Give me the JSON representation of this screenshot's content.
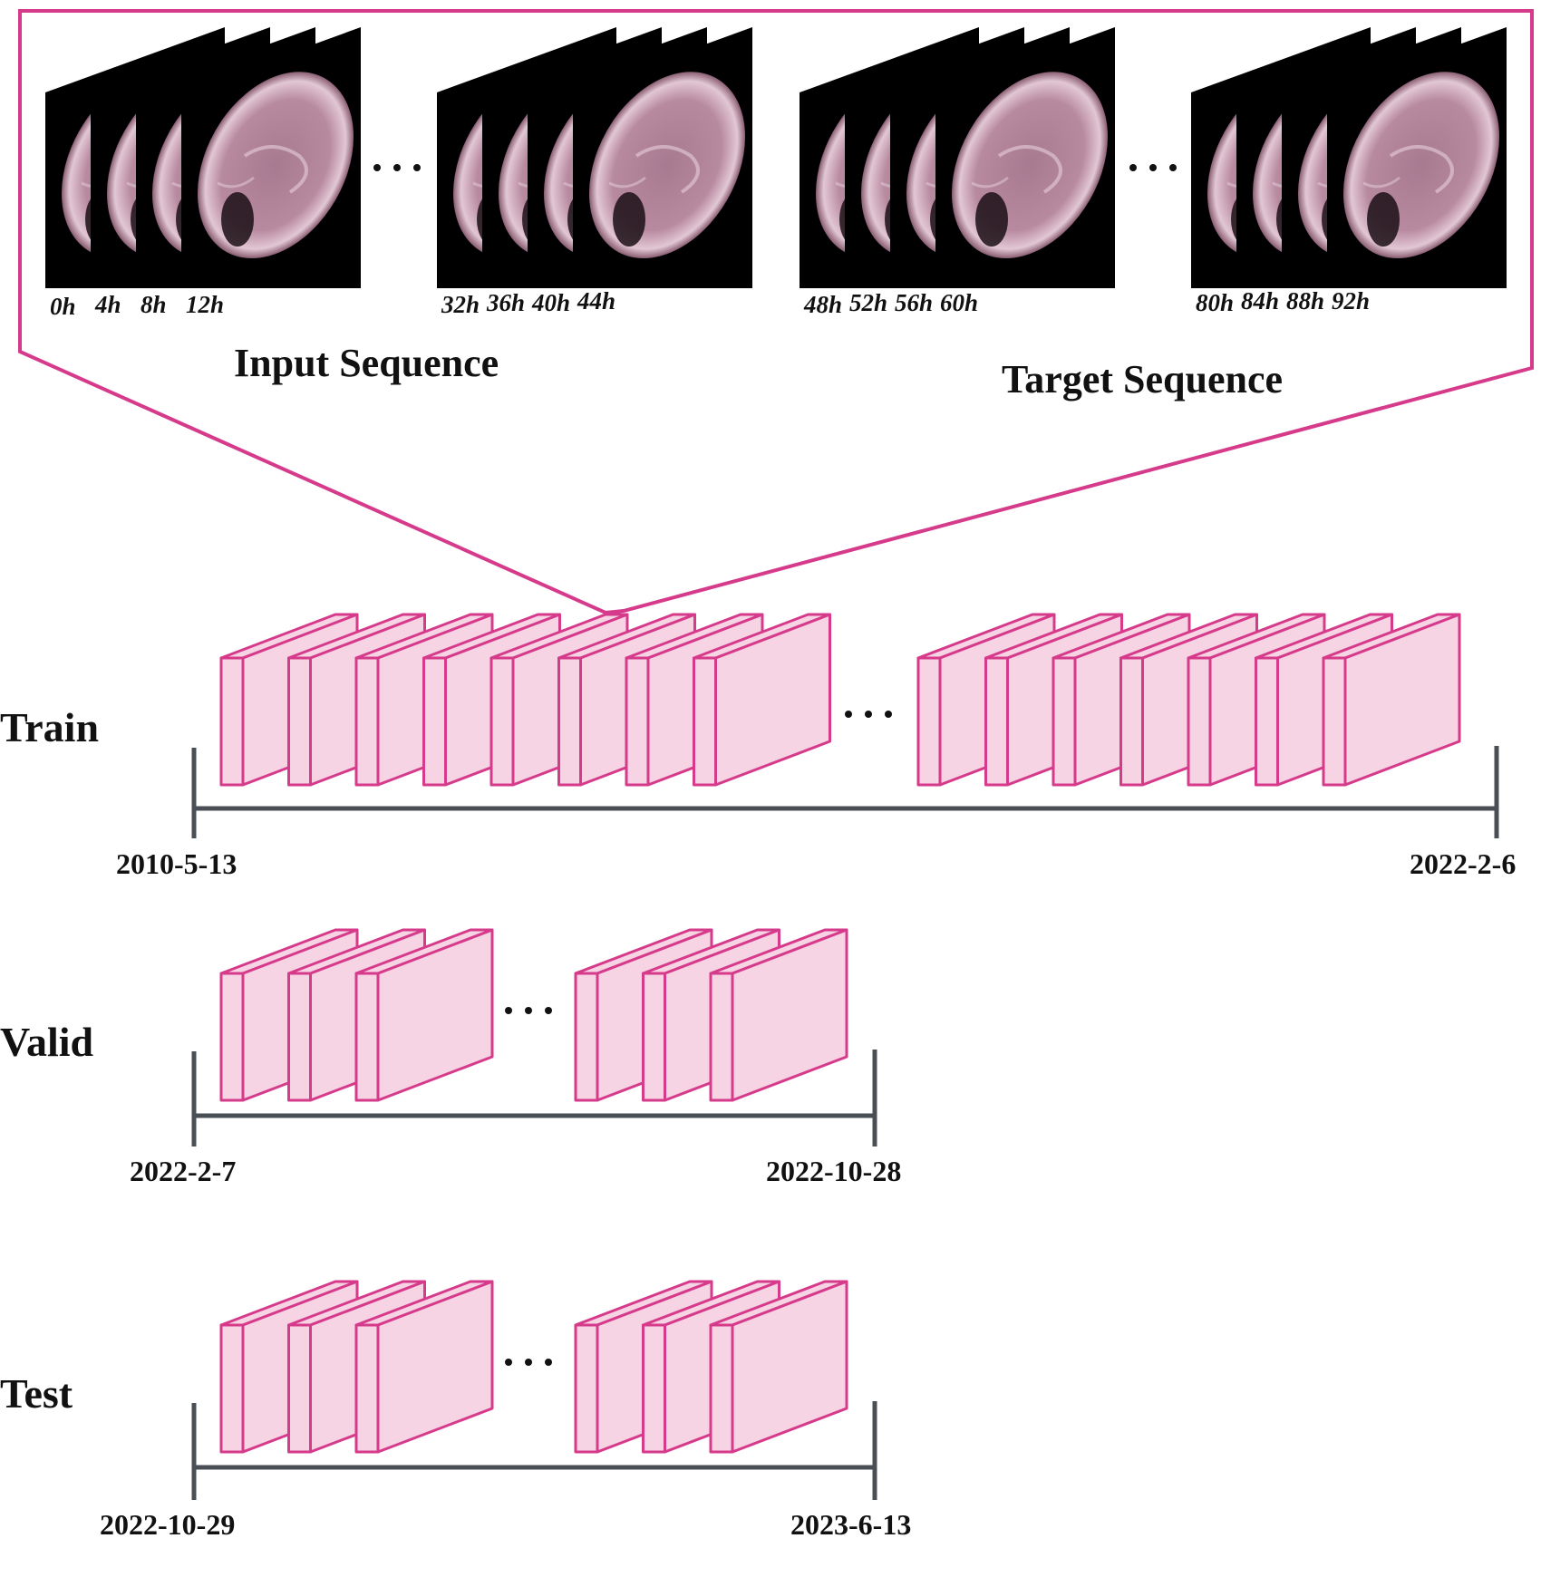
{
  "colors": {
    "accent": "#d63a8a",
    "block_fill": "#f7d4e4",
    "timeline": "#4a4f56",
    "frame_bg": "#000000",
    "sun": "#c99ab0"
  },
  "zoom": {
    "input_label": "Input Sequence",
    "target_label": "Target Sequence",
    "input_times": [
      [
        "0h",
        "4h",
        "8h",
        "12h"
      ],
      [
        "32h",
        "36h",
        "40h",
        "44h"
      ]
    ],
    "target_times": [
      [
        "48h",
        "52h",
        "56h",
        "60h"
      ],
      [
        "80h",
        "84h",
        "88h",
        "92h"
      ]
    ]
  },
  "splits": [
    {
      "name": "Train",
      "start": "2010-5-13",
      "end": "2022-2-6"
    },
    {
      "name": "Valid",
      "start": "2022-2-7",
      "end": "2022-10-28"
    },
    {
      "name": "Test",
      "start": "2022-10-29",
      "end": "2023-6-13"
    }
  ]
}
